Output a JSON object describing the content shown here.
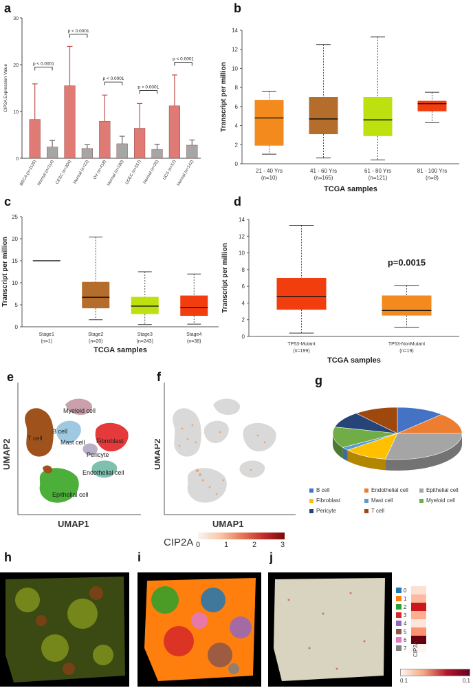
{
  "panel_letters": [
    "a",
    "b",
    "c",
    "d",
    "e",
    "f",
    "g",
    "h",
    "i",
    "j"
  ],
  "chart_data": [
    {
      "panel": "a",
      "type": "bar",
      "ylabel": "CIP2A Expression Value",
      "ylim": [
        0,
        30
      ],
      "yticks": [
        0,
        10,
        20,
        30
      ],
      "categories": [
        "BRCA (n=1135)",
        "Normal (n=114)",
        "CESC (n=304)",
        "Normal (n=22)",
        "OV (n=418)",
        "Normal (n=180)",
        "UCEC (n=557)",
        "Normal (n=35)",
        "UCS (n=57)",
        "Normal (n=142)"
      ],
      "values": [
        8.3,
        2.4,
        15.5,
        2.1,
        7.9,
        3.1,
        6.4,
        1.9,
        11.2,
        2.8
      ],
      "errors": [
        7.6,
        1.4,
        8.4,
        0.8,
        5.6,
        1.6,
        5.3,
        1.1,
        6.6,
        1.1
      ],
      "colors": [
        "#e07a74",
        "#a6a6a6",
        "#e07a74",
        "#a6a6a6",
        "#e07a74",
        "#a6a6a6",
        "#e07a74",
        "#a6a6a6",
        "#e07a74",
        "#a6a6a6"
      ],
      "significance": [
        {
          "from": 0,
          "to": 1,
          "y": 19.5,
          "label": "p < 0.0001"
        },
        {
          "from": 2,
          "to": 3,
          "y": 26.5,
          "label": "p < 0.0001"
        },
        {
          "from": 4,
          "to": 5,
          "y": 16.3,
          "label": "p < 0.0001"
        },
        {
          "from": 6,
          "to": 7,
          "y": 14.5,
          "label": "p < 0.0001"
        },
        {
          "from": 8,
          "to": 9,
          "y": 20.5,
          "label": "p < 0.0001"
        }
      ]
    },
    {
      "panel": "b",
      "type": "box",
      "xlabel": "TCGA samples",
      "ylabel": "Transcript per million",
      "ylim": [
        0,
        14
      ],
      "yticks": [
        0,
        2,
        4,
        6,
        8,
        10,
        12,
        14
      ],
      "groups": [
        {
          "label": "21 - 40 Yrs",
          "n": "(n=10)",
          "min": 1.0,
          "q1": 1.9,
          "median": 4.8,
          "q3": 6.7,
          "max": 7.6,
          "color": "#f28a1e"
        },
        {
          "label": "41 - 60 Yrs",
          "n": "(n=165)",
          "min": 0.6,
          "q1": 3.1,
          "median": 4.7,
          "q3": 7.0,
          "max": 12.5,
          "color": "#b56d2c"
        },
        {
          "label": "61 - 80 Yrs",
          "n": "(n=121)",
          "min": 0.4,
          "q1": 2.9,
          "median": 4.6,
          "q3": 7.0,
          "max": 13.3,
          "color": "#bde00f"
        },
        {
          "label": "81 - 100 Yrs",
          "n": "(n=8)",
          "min": 4.3,
          "q1": 5.5,
          "median": 6.3,
          "q3": 6.6,
          "max": 7.5,
          "color": "#f23d0f"
        }
      ]
    },
    {
      "panel": "c",
      "type": "box",
      "xlabel": "TCGA samples",
      "ylabel": "Transcript per million",
      "ylim": [
        0,
        25
      ],
      "yticks": [
        0,
        5,
        10,
        15,
        20,
        25
      ],
      "groups": [
        {
          "label": "Stage1",
          "n": "(n=1)",
          "min": 15.0,
          "q1": 15.0,
          "median": 15.0,
          "q3": 15.0,
          "max": 15.0,
          "color": "#555555"
        },
        {
          "label": "Stage2",
          "n": "(n=20)",
          "min": 1.6,
          "q1": 4.2,
          "median": 6.7,
          "q3": 10.2,
          "max": 20.4,
          "color": "#b56d2c"
        },
        {
          "label": "Stage3",
          "n": "(n=243)",
          "min": 0.5,
          "q1": 2.9,
          "median": 4.7,
          "q3": 6.8,
          "max": 12.5,
          "color": "#bde00f"
        },
        {
          "label": "Stage4",
          "n": "(n=38)",
          "min": 0.6,
          "q1": 2.5,
          "median": 4.4,
          "q3": 7.1,
          "max": 12.0,
          "color": "#f23d0f"
        }
      ]
    },
    {
      "panel": "d",
      "type": "box",
      "xlabel": "TCGA samples",
      "ylabel": "Transcript per million",
      "ylim": [
        0,
        14
      ],
      "yticks": [
        0,
        2,
        4,
        6,
        8,
        10,
        12,
        14
      ],
      "annotation": "p=0.0015",
      "groups": [
        {
          "label": "TP53-Mutant",
          "n": "(n=199)",
          "min": 0.4,
          "q1": 3.2,
          "median": 4.8,
          "q3": 7.0,
          "max": 13.3,
          "color": "#f23d0f"
        },
        {
          "label": "TP53-NonMutant",
          "n": "(n=19)",
          "min": 1.1,
          "q1": 2.5,
          "median": 3.1,
          "q3": 4.9,
          "max": 6.1,
          "color": "#f28a1e"
        }
      ]
    },
    {
      "panel": "g",
      "type": "pie",
      "labels": [
        "B cell",
        "Endothelial cell",
        "Epithelial cell",
        "Fibroblast",
        "Mast cell",
        "Myeloid cell",
        "Pericyte",
        "T cell"
      ],
      "values": [
        12,
        13,
        28,
        11,
        2,
        13,
        10,
        11
      ],
      "colors": [
        "#4472c4",
        "#ed7d31",
        "#a5a5a5",
        "#ffc000",
        "#5b9bd5",
        "#70ad47",
        "#264478",
        "#9e480e"
      ]
    }
  ],
  "umap": {
    "xlabel": "UMAP1",
    "ylabel": "UMAP2",
    "cluster_labels": [
      "Myeloid cell",
      "B cell",
      "Mast cell",
      "Fibroblast",
      "T cell",
      "Pericyte",
      "Endothelial cell",
      "Epithelial cell"
    ]
  },
  "colorbar": {
    "title": "CIP2A",
    "ticks": [
      "0",
      "1",
      "2",
      "3"
    ]
  },
  "spatial": {
    "cluster_ids": [
      "0",
      "1",
      "2",
      "3",
      "4",
      "5",
      "6",
      "7"
    ],
    "cluster_colors": [
      "#1f77b4",
      "#ff7f0e",
      "#2ca02c",
      "#d62728",
      "#9467bd",
      "#8c564b",
      "#e377c2",
      "#7f7f7f"
    ],
    "heat_label": "CIP2A",
    "scale_ticks": [
      "0.1",
      "0.1"
    ]
  }
}
